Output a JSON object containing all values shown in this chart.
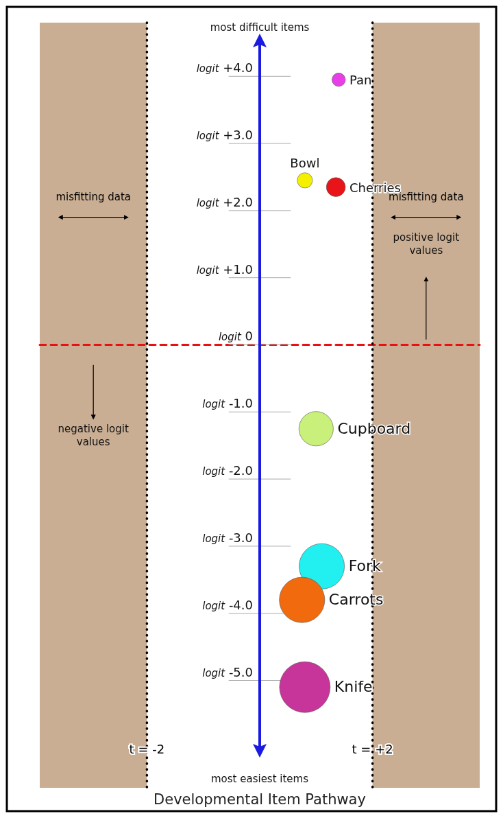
{
  "chart_data": {
    "type": "bubble",
    "xlabel": "Developmental Item Pathway",
    "xlim": [
      -3.9,
      3.9
    ],
    "ylim": [
      -6.6,
      4.8
    ],
    "xticks": [
      {
        "value": -2,
        "label": "t = -2"
      },
      {
        "value": 2,
        "label": "t = +2"
      }
    ],
    "yticks": [
      {
        "value": 4,
        "label": "logit +4.0"
      },
      {
        "value": 3,
        "label": "logit +3.0"
      },
      {
        "value": 2,
        "label": "logit +2.0"
      },
      {
        "value": 1,
        "label": "logit +1.0"
      },
      {
        "value": 0,
        "label": "logit 0"
      },
      {
        "value": -1,
        "label": "logit -1.0"
      },
      {
        "value": -2,
        "label": "logit -2.0"
      },
      {
        "value": -3,
        "label": "logit -3.0"
      },
      {
        "value": -4,
        "label": "logit -4.0"
      },
      {
        "value": -5,
        "label": "logit -5.0"
      }
    ],
    "series": [
      {
        "name": "Pan",
        "color": "#e83ee8",
        "x": [
          1.4
        ],
        "values": [
          3.95
        ],
        "sizes": [
          0.07
        ]
      },
      {
        "name": "Bowl",
        "color": "#f5f000",
        "x": [
          0.8
        ],
        "values": [
          2.45
        ],
        "sizes": [
          0.09
        ]
      },
      {
        "name": "Cherries",
        "color": "#e8141a",
        "x": [
          1.35
        ],
        "values": [
          2.35
        ],
        "sizes": [
          0.14
        ]
      },
      {
        "name": "Cupboard",
        "color": "#c8f07a",
        "x": [
          1.0
        ],
        "values": [
          -1.25
        ],
        "sizes": [
          0.46
        ]
      },
      {
        "name": "Fork",
        "color": "#22f0f0",
        "x": [
          1.1
        ],
        "values": [
          -3.3
        ],
        "sizes": [
          0.8
        ]
      },
      {
        "name": "Carrots",
        "color": "#f26a0e",
        "x": [
          0.75
        ],
        "values": [
          -3.8
        ],
        "sizes": [
          0.8
        ]
      },
      {
        "name": "Knife",
        "color": "#c8359a",
        "x": [
          0.8
        ],
        "values": [
          -5.1
        ],
        "sizes": [
          1
        ]
      }
    ],
    "bands": [
      {
        "axis": "x",
        "from": -3.9,
        "to": -2,
        "label": "misfitting data",
        "color": "#c9ae94"
      },
      {
        "axis": "x",
        "from": 2,
        "to": 3.9,
        "label": "misfitting data",
        "color": "#c9ae94"
      }
    ],
    "ref_lines": [
      {
        "axis": "y",
        "value": 0,
        "color": "#e81010",
        "line_style": "dashed"
      },
      {
        "axis": "x",
        "value": -2,
        "color": "#000000",
        "line_style": "dotted"
      },
      {
        "axis": "x",
        "value": 2,
        "color": "#000000",
        "line_style": "dotted"
      }
    ],
    "annotations": [
      "most difficult items",
      "most easiest items",
      "positive logit values",
      "negative logit values"
    ],
    "legend": false,
    "marker": "circle"
  }
}
